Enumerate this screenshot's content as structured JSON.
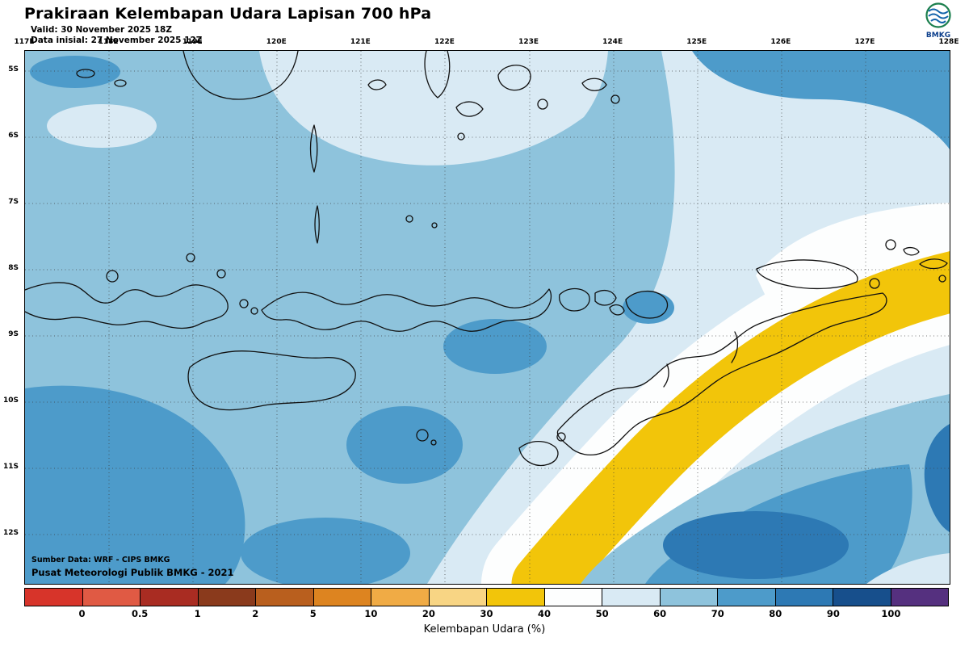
{
  "header": {
    "title": "Prakiraan Kelembapan Udara Lapisan 700 hPa",
    "valid_line": "Valid: 30 November 2025 18Z",
    "init_line": "Data inisial: 27 November 2025 12Z",
    "logo_text": "BMKG"
  },
  "icons": {
    "logo": "bmkg-logo"
  },
  "map": {
    "lon_labels": [
      "117E",
      "118E",
      "119E",
      "120E",
      "121E",
      "122E",
      "123E",
      "124E",
      "125E",
      "126E",
      "127E",
      "128E"
    ],
    "lat_labels": [
      "5S",
      "6S",
      "7S",
      "8S",
      "9S",
      "10S",
      "11S",
      "12S"
    ],
    "source_line1": "Sumber Data: WRF - CIPS BMKG",
    "source_line2": "Pusat Meteorologi Publik BMKG - 2021"
  },
  "colorbar": {
    "tick_labels": [
      "0",
      "0.5",
      "1",
      "2",
      "5",
      "10",
      "20",
      "30",
      "40",
      "50",
      "60",
      "70",
      "80",
      "90",
      "100"
    ],
    "colors": [
      "#d7342a",
      "#e05a44",
      "#a92c22",
      "#8a3a1c",
      "#b95f1e",
      "#dd8420",
      "#f0ab45",
      "#f8d584",
      "#f2c50a",
      "#fdfefe",
      "#d9eaf4",
      "#8ec3dc",
      "#4d9bca",
      "#2d79b4",
      "#174f8c",
      "#55307f"
    ],
    "caption": "Kelembapan Udara (%)",
    "unit": "%",
    "variable": "Kelembapan Udara",
    "level": "700 hPa"
  }
}
